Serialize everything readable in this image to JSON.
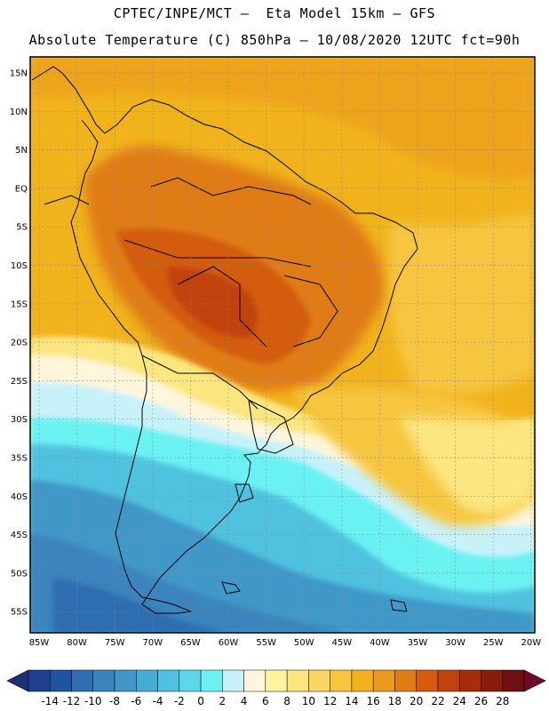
{
  "header": {
    "line1": "CPTEC/INPE/MCT –  Eta Model 15km – GFS",
    "line2": "Absolute Temperature (C) 850hPa – 10/08/2020 12UTC fct=90h"
  },
  "map": {
    "latitude_labels": [
      "15N",
      "10N",
      "5N",
      "EQ",
      "5S",
      "10S",
      "15S",
      "20S",
      "25S",
      "30S",
      "35S",
      "40S",
      "45S",
      "50S",
      "55S"
    ],
    "longitude_labels": [
      "85W",
      "80W",
      "75W",
      "70W",
      "65W",
      "60W",
      "55W",
      "50W",
      "45W",
      "40W",
      "35W",
      "30W",
      "25W",
      "20W"
    ]
  },
  "colorbar": {
    "labels": [
      "-14",
      "-12",
      "-10",
      "-8",
      "-6",
      "-4",
      "-2",
      "0",
      "2",
      "4",
      "6",
      "8",
      "10",
      "12",
      "14",
      "16",
      "18",
      "20",
      "22",
      "24",
      "26",
      "28"
    ],
    "colors": [
      "#1c3f8f",
      "#2253a0",
      "#2f6db0",
      "#3a84bd",
      "#3f98c8",
      "#45acd4",
      "#4fc2df",
      "#5ad8e9",
      "#6af2f2",
      "#c8f2fa",
      "#fff6dc",
      "#fdf3a0",
      "#fce680",
      "#fad763",
      "#f6c640",
      "#f1b31c",
      "#eb9a1f",
      "#e07c14",
      "#d35c0f",
      "#c1420c",
      "#a62c0a",
      "#8a1b0f",
      "#6c1012"
    ],
    "left_arrow_color": "#1e2f7a",
    "right_arrow_color": "#73082a"
  }
}
